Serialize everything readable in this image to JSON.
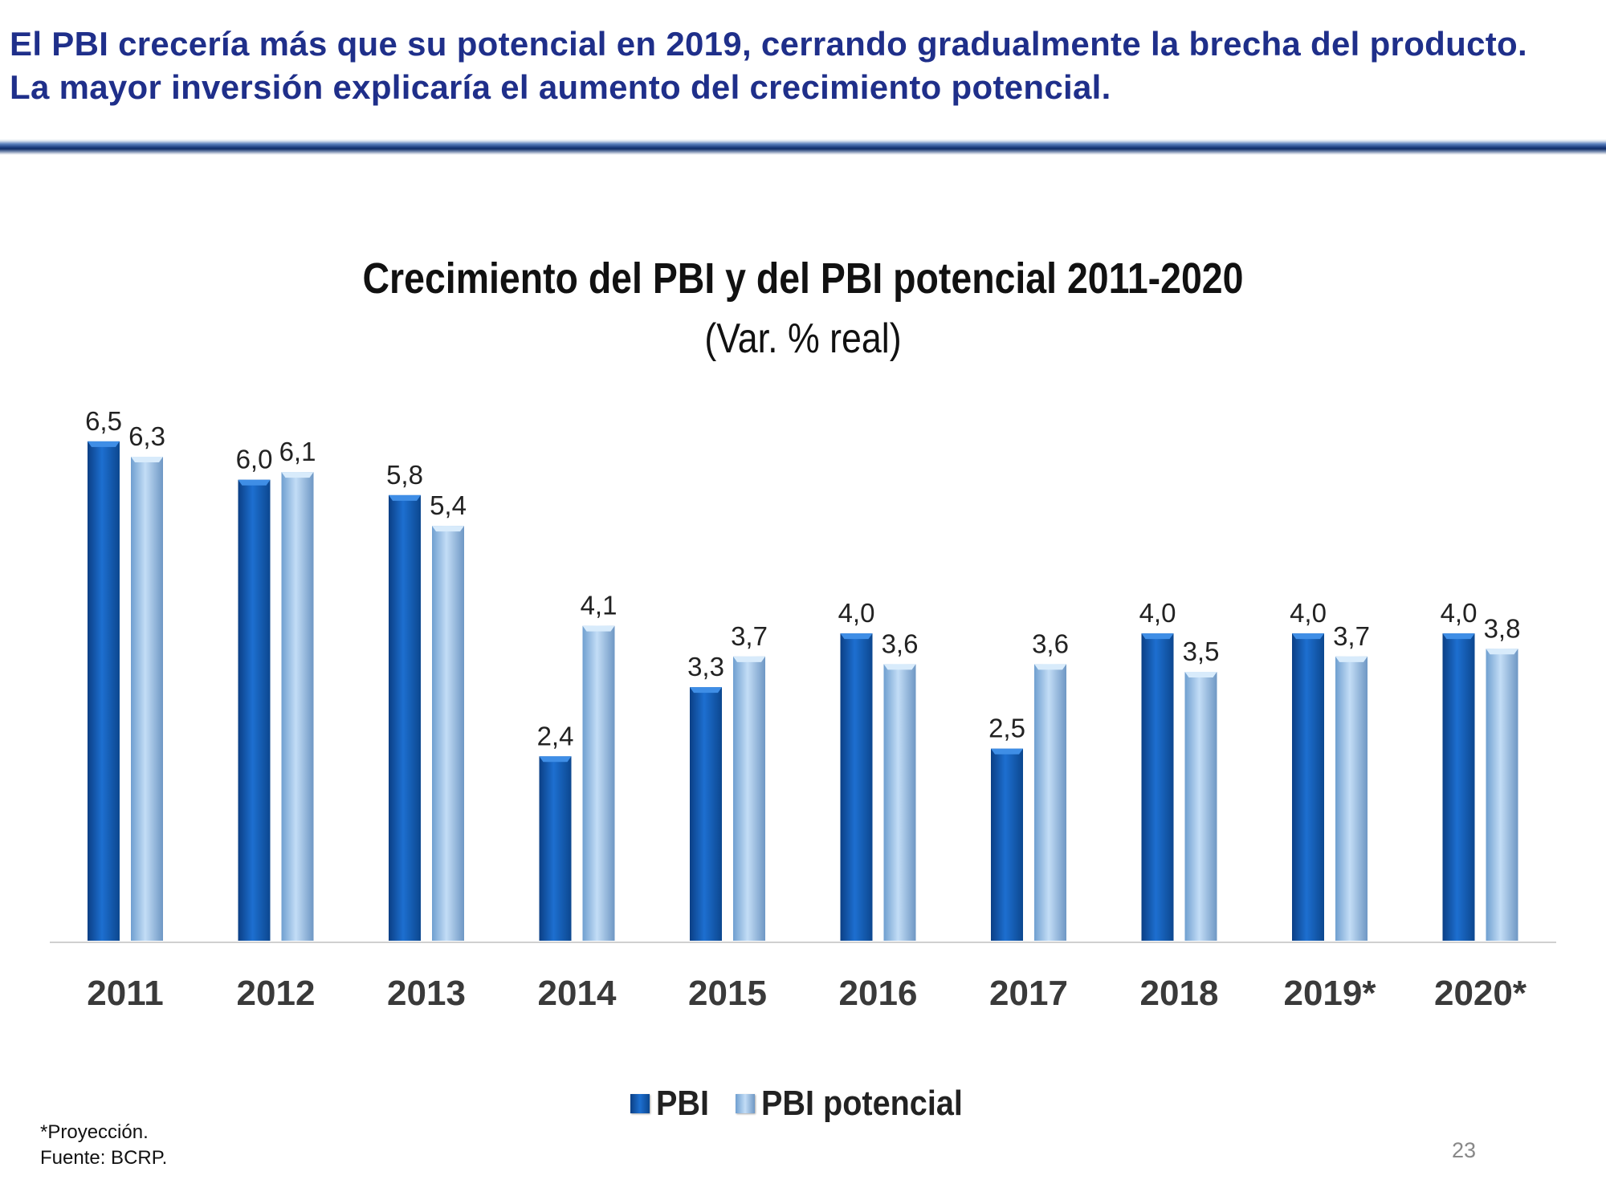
{
  "header": {
    "line1": "El PBI crecería más que su potencial en 2019, cerrando gradualmente la brecha del producto.",
    "line2": "La mayor inversión explicaría el aumento del crecimiento potencial."
  },
  "chart_data": {
    "type": "bar",
    "title": "Crecimiento del PBI y del PBI potencial 2011-2020",
    "subtitle": "(Var. % real)",
    "categories": [
      "2011",
      "2012",
      "2013",
      "2014",
      "2015",
      "2016",
      "2017",
      "2018",
      "2019*",
      "2020*"
    ],
    "series": [
      {
        "name": "PBI",
        "color": "#1565c0",
        "values": [
          6.5,
          6.0,
          5.8,
          2.4,
          3.3,
          4.0,
          2.5,
          4.0,
          4.0,
          4.0
        ],
        "labels": [
          "6,5",
          "6,0",
          "5,8",
          "2,4",
          "3,3",
          "4,0",
          "2,5",
          "4,0",
          "4,0",
          "4,0"
        ]
      },
      {
        "name": "PBI potencial",
        "color": "#a9cdf0",
        "values": [
          6.3,
          6.1,
          5.4,
          4.1,
          3.7,
          3.6,
          3.6,
          3.5,
          3.7,
          3.8
        ],
        "labels": [
          "6,3",
          "6,1",
          "5,4",
          "4,1",
          "3,7",
          "3,6",
          "3,6",
          "3,5",
          "3,7",
          "3,8"
        ]
      }
    ],
    "ylim": [
      0,
      7
    ],
    "grid": false,
    "legend_position": "bottom"
  },
  "footnote": {
    "line1": "*Proyección.",
    "line2": "Fuente: BCRP."
  },
  "page_number": "23"
}
